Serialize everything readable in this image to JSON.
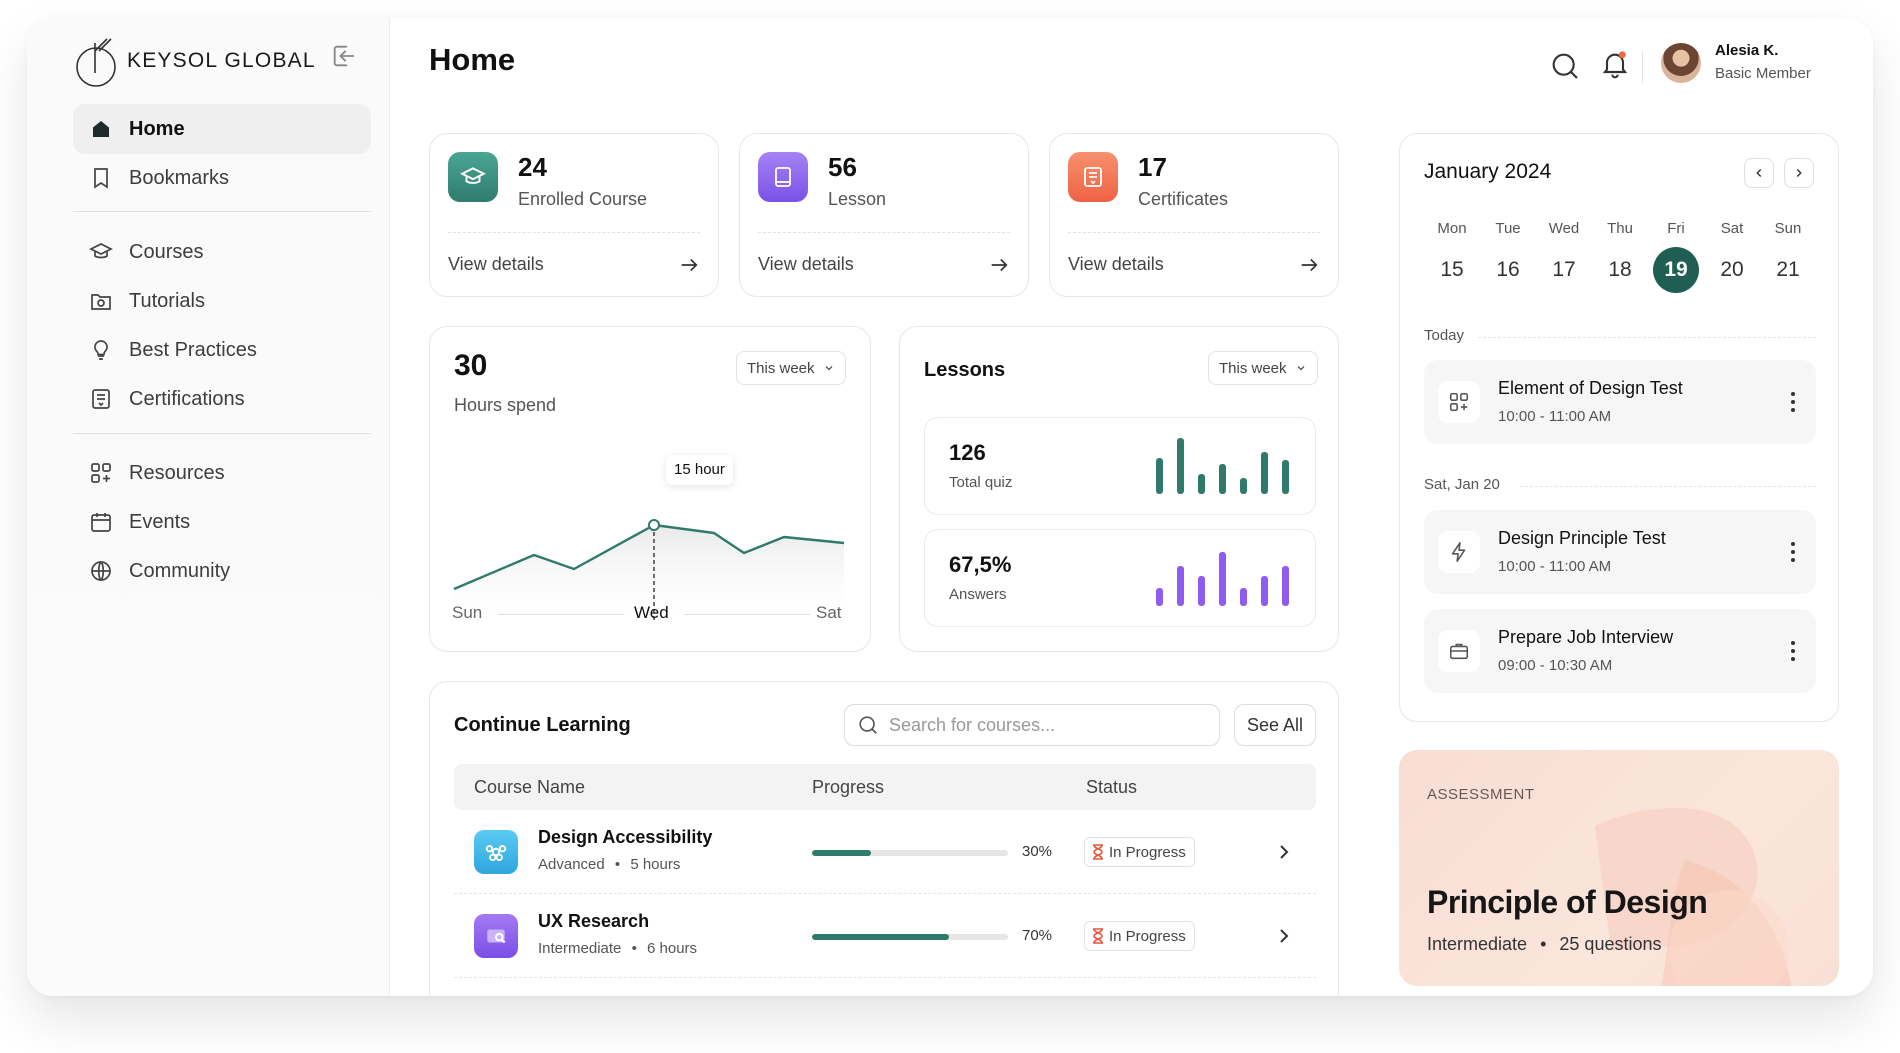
{
  "brand": {
    "name": "KEYSOL GLOBAL"
  },
  "sidebar": {
    "items": [
      {
        "label": "Home",
        "icon": "home-icon",
        "active": true
      },
      {
        "label": "Bookmarks",
        "icon": "bookmark-icon"
      },
      {
        "label": "Courses",
        "icon": "graduation-cap-icon"
      },
      {
        "label": "Tutorials",
        "icon": "video-folder-icon"
      },
      {
        "label": "Best Practices",
        "icon": "lightbulb-icon"
      },
      {
        "label": "Certifications",
        "icon": "certificate-icon"
      },
      {
        "label": "Resources",
        "icon": "grid-plus-icon"
      },
      {
        "label": "Events",
        "icon": "calendar-icon"
      },
      {
        "label": "Community",
        "icon": "globe-icon"
      }
    ]
  },
  "header": {
    "title": "Home",
    "user": {
      "name": "Alesia K.",
      "role": "Basic Member"
    }
  },
  "stats": [
    {
      "value": "24",
      "label": "Enrolled Course",
      "link": "View details",
      "icon": "graduation-cap-icon",
      "color": "#3a8f7f"
    },
    {
      "value": "56",
      "label": "Lesson",
      "link": "View details",
      "icon": "book-icon",
      "color": "#8f67e8"
    },
    {
      "value": "17",
      "label": "Certificates",
      "link": "View details",
      "icon": "certificate-icon",
      "color": "#f3775a"
    }
  ],
  "hours": {
    "value": "30",
    "label": "Hours spend",
    "filter": "This week",
    "tooltip": "15 hour",
    "x_labels": [
      "Sun",
      "Wed",
      "Sat"
    ]
  },
  "lessons": {
    "title": "Lessons",
    "filter": "This week",
    "quiz": {
      "value": "126",
      "label": "Total quiz",
      "color": "#2f7a6b"
    },
    "answers": {
      "value": "67,5%",
      "label": "Answers",
      "color": "#8f5bf0"
    }
  },
  "calendar": {
    "month": "January 2024",
    "days_of_week": [
      "Mon",
      "Tue",
      "Wed",
      "Thu",
      "Fri",
      "Sat",
      "Sun"
    ],
    "dates": [
      "15",
      "16",
      "17",
      "18",
      "19",
      "20",
      "21"
    ],
    "selected": "19",
    "sections": [
      {
        "label": "Today",
        "events": [
          {
            "title": "Element of Design Test",
            "time": "10:00 - 11:00 AM",
            "icon": "grid-plus-icon"
          }
        ]
      },
      {
        "label": "Sat, Jan 20",
        "events": [
          {
            "title": "Design Principle Test",
            "time": "10:00 - 11:00 AM",
            "icon": "lightning-icon"
          },
          {
            "title": "Prepare Job Interview",
            "time": "09:00 - 10:30 AM",
            "icon": "briefcase-icon"
          }
        ]
      }
    ]
  },
  "assessment": {
    "kicker": "ASSESSMENT",
    "title": "Principle of Design",
    "level": "Intermediate",
    "questions": "25 questions"
  },
  "learning": {
    "title": "Continue Learning",
    "search_placeholder": "Search for courses...",
    "see_all": "See All",
    "columns": [
      "Course Name",
      "Progress",
      "Status"
    ],
    "rows": [
      {
        "name": "Design Accessibility",
        "level": "Advanced",
        "duration": "5 hours",
        "progress": 30,
        "progress_label": "30%",
        "status": "In Progress",
        "icon": "accessibility-icon",
        "color": "#3ab6e8"
      },
      {
        "name": "UX Research",
        "level": "Intermediate",
        "duration": "6 hours",
        "progress": 70,
        "progress_label": "70%",
        "status": "In Progress",
        "icon": "research-icon",
        "color": "#8f5bf0"
      }
    ]
  }
}
